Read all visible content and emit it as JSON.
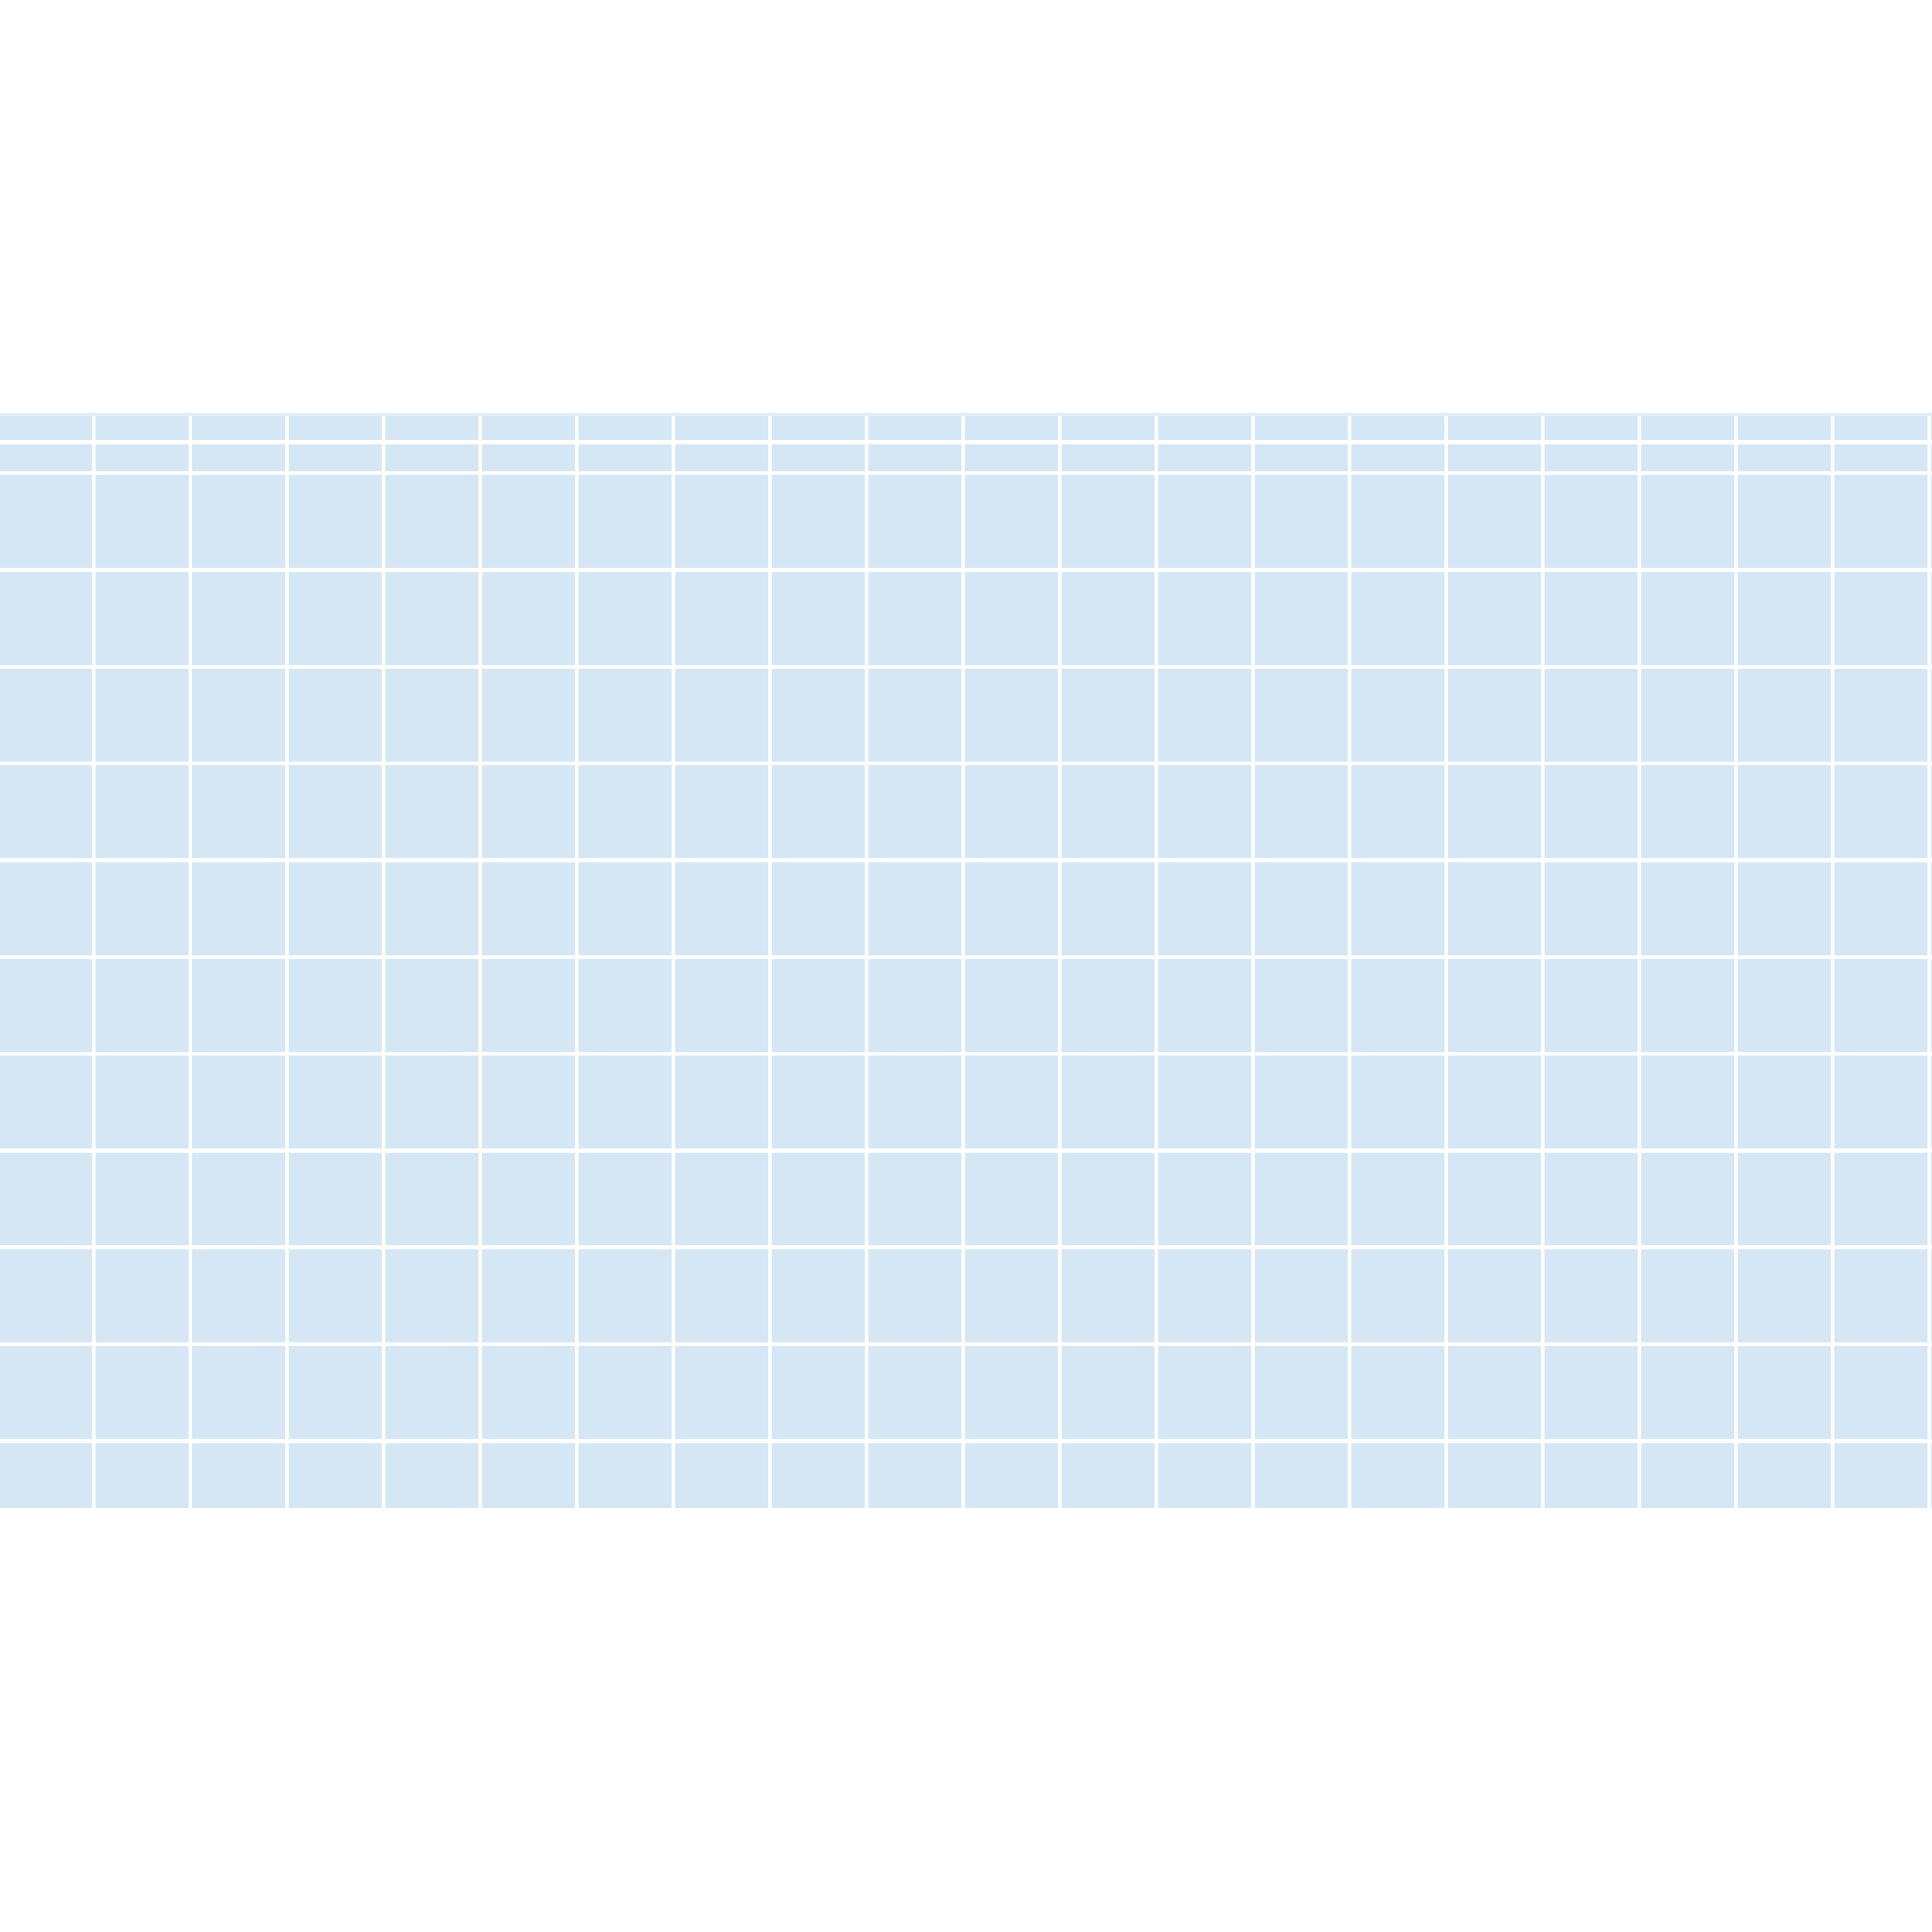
{
  "grid": {
    "columns": 20,
    "rows": 12,
    "cell_color": "#d5e6f5",
    "line_color": "#ffffff",
    "background_color": "#ffffff"
  }
}
